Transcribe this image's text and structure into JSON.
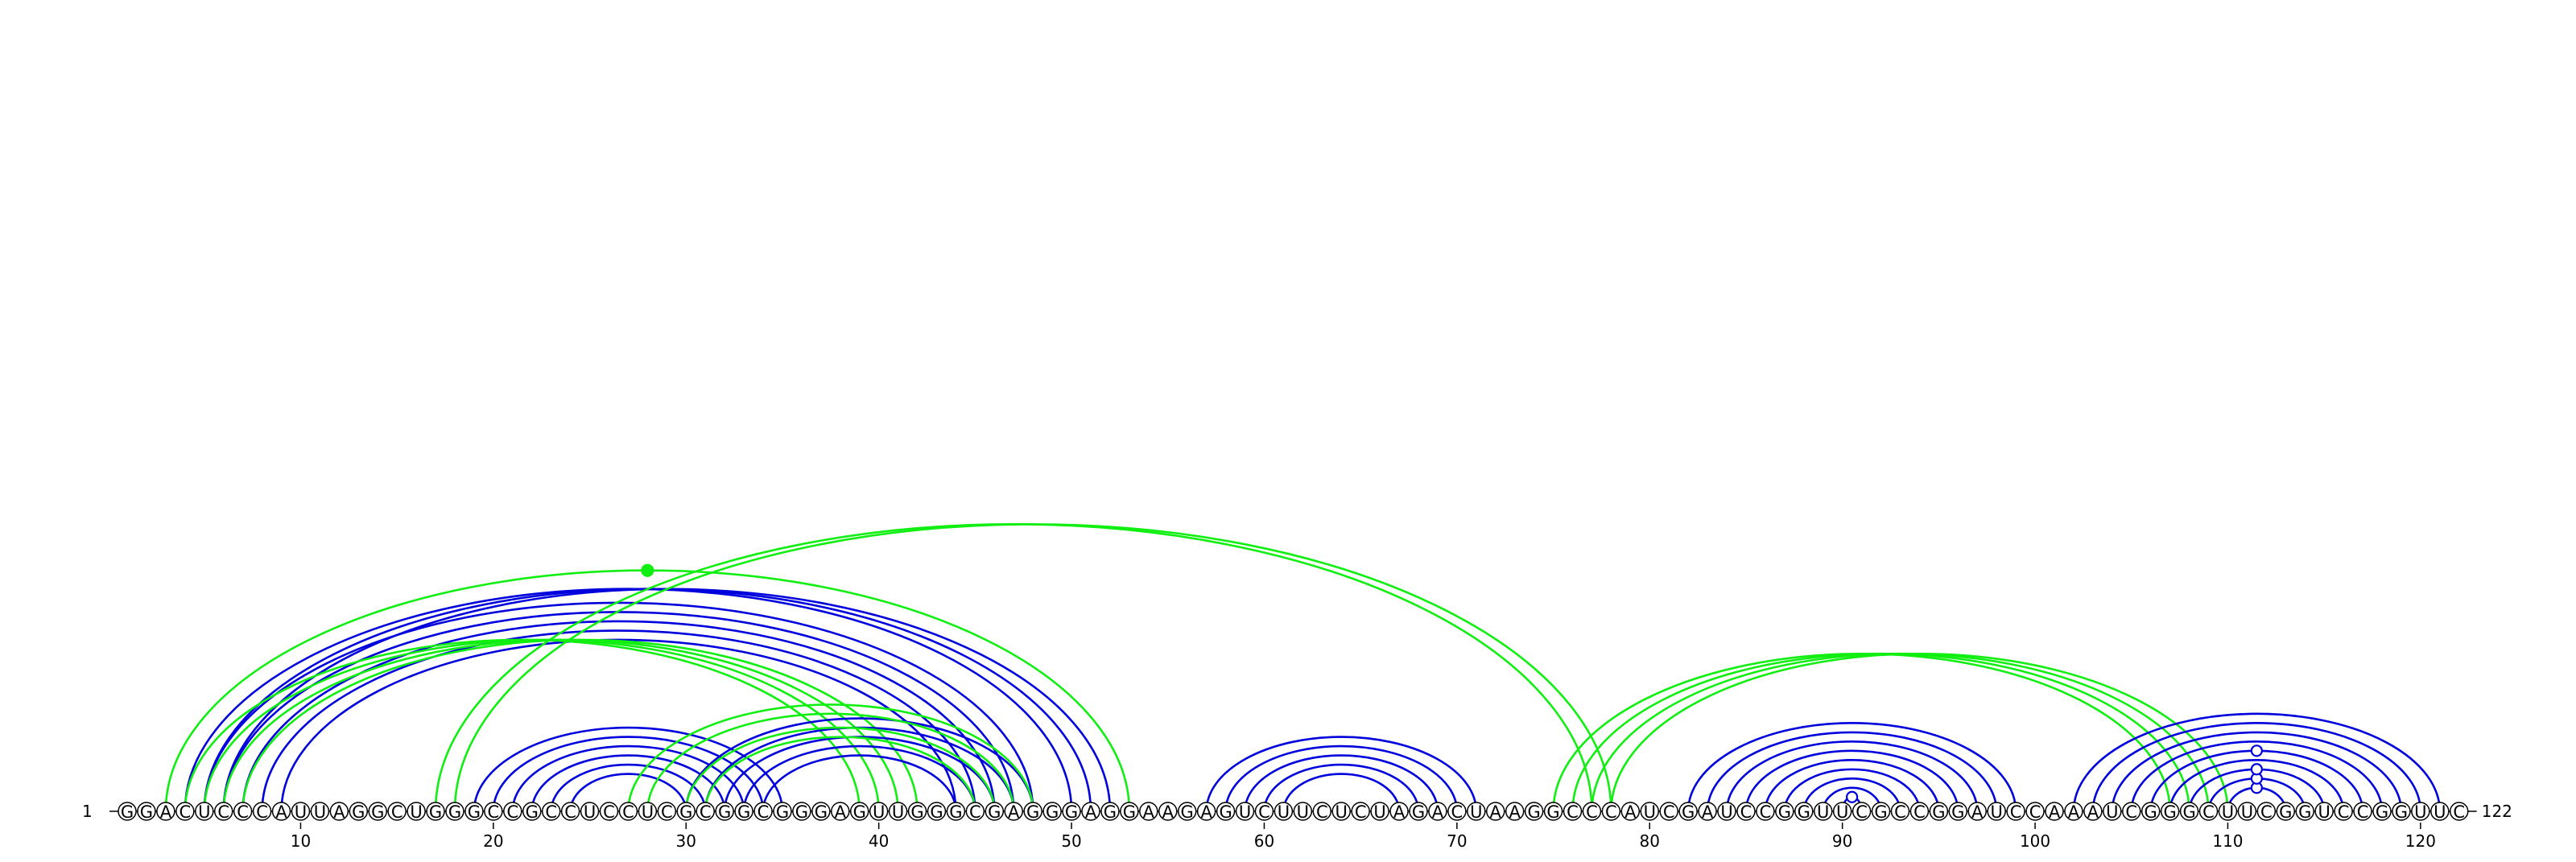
{
  "diagram": {
    "type": "rna-arc-diagram",
    "sequence": "GGACUCCCAUUAGGCUGGGCCGCCUCCUCGCGGCGGGAGUUGGGCGAGGGAGGAAGAGUCUUCUCUAGACUAAGGCCCAUCGAUCCGGUUCGCCGGAUCCAAAUCGGGCUUCGGUCCGGUUC",
    "length": 122,
    "start_label": "1",
    "end_label": "122",
    "tick_labels": [
      "10",
      "20",
      "30",
      "40",
      "50",
      "60",
      "70",
      "80",
      "90",
      "100",
      "110",
      "120"
    ],
    "colors": {
      "blue": "#0000dd",
      "green": "#11ee11",
      "backbone": "#000000"
    },
    "arcs": [
      {
        "i": 5,
        "j": 48,
        "color": "blue"
      },
      {
        "i": 6,
        "j": 47,
        "color": "blue"
      },
      {
        "i": 7,
        "j": 46,
        "color": "blue"
      },
      {
        "i": 8,
        "j": 45,
        "color": "blue"
      },
      {
        "i": 9,
        "j": 44,
        "color": "blue"
      },
      {
        "i": 4,
        "j": 50,
        "color": "blue"
      },
      {
        "i": 5,
        "j": 51,
        "color": "blue"
      },
      {
        "i": 6,
        "j": 52,
        "color": "blue"
      },
      {
        "i": 3,
        "j": 53,
        "color": "green"
      },
      {
        "i": 4,
        "j": 39,
        "color": "green"
      },
      {
        "i": 5,
        "j": 40,
        "color": "green"
      },
      {
        "i": 6,
        "j": 41,
        "color": "green"
      },
      {
        "i": 7,
        "j": 42,
        "color": "green"
      },
      {
        "i": 19,
        "j": 35,
        "color": "blue"
      },
      {
        "i": 20,
        "j": 34,
        "color": "blue"
      },
      {
        "i": 21,
        "j": 33,
        "color": "blue"
      },
      {
        "i": 22,
        "j": 32,
        "color": "blue"
      },
      {
        "i": 23,
        "j": 31,
        "color": "blue"
      },
      {
        "i": 24,
        "j": 30,
        "color": "blue"
      },
      {
        "i": 30,
        "j": 48,
        "color": "blue"
      },
      {
        "i": 31,
        "j": 47,
        "color": "blue"
      },
      {
        "i": 32,
        "j": 46,
        "color": "blue"
      },
      {
        "i": 33,
        "j": 45,
        "color": "blue"
      },
      {
        "i": 34,
        "j": 44,
        "color": "blue"
      },
      {
        "i": 27,
        "j": 48,
        "color": "green"
      },
      {
        "i": 28,
        "j": 47,
        "color": "green"
      },
      {
        "i": 30,
        "j": 46,
        "color": "green"
      },
      {
        "i": 31,
        "j": 45,
        "color": "green"
      },
      {
        "i": 17,
        "j": 77,
        "color": "green"
      },
      {
        "i": 18,
        "j": 78,
        "color": "green"
      },
      {
        "i": 57,
        "j": 71,
        "color": "blue"
      },
      {
        "i": 58,
        "j": 70,
        "color": "blue"
      },
      {
        "i": 59,
        "j": 69,
        "color": "blue"
      },
      {
        "i": 60,
        "j": 68,
        "color": "blue"
      },
      {
        "i": 61,
        "j": 67,
        "color": "blue"
      },
      {
        "i": 75,
        "j": 107,
        "color": "green"
      },
      {
        "i": 76,
        "j": 108,
        "color": "green"
      },
      {
        "i": 77,
        "j": 109,
        "color": "green"
      },
      {
        "i": 78,
        "j": 110,
        "color": "green"
      },
      {
        "i": 82,
        "j": 99,
        "color": "blue"
      },
      {
        "i": 83,
        "j": 98,
        "color": "blue"
      },
      {
        "i": 84,
        "j": 97,
        "color": "blue"
      },
      {
        "i": 85,
        "j": 96,
        "color": "blue"
      },
      {
        "i": 86,
        "j": 95,
        "color": "blue"
      },
      {
        "i": 87,
        "j": 94,
        "color": "blue"
      },
      {
        "i": 88,
        "j": 93,
        "color": "blue"
      },
      {
        "i": 89,
        "j": 92,
        "color": "blue"
      },
      {
        "i": 90,
        "j": 91,
        "color": "blue"
      },
      {
        "i": 102,
        "j": 121,
        "color": "blue"
      },
      {
        "i": 103,
        "j": 120,
        "color": "blue"
      },
      {
        "i": 104,
        "j": 119,
        "color": "blue"
      },
      {
        "i": 105,
        "j": 118,
        "color": "blue"
      },
      {
        "i": 106,
        "j": 117,
        "color": "blue"
      },
      {
        "i": 107,
        "j": 116,
        "color": "blue"
      },
      {
        "i": 108,
        "j": 115,
        "color": "blue"
      },
      {
        "i": 109,
        "j": 114,
        "color": "blue"
      },
      {
        "i": 110,
        "j": 113,
        "color": "blue"
      }
    ],
    "pseudoknot_markers": [
      {
        "at": 28,
        "arc_i": 3,
        "arc_j": 53,
        "color": "green",
        "filled": true
      },
      {
        "at": 90.5,
        "arc_i": 90,
        "arc_j": 91,
        "color": "blue",
        "filled": false
      },
      {
        "at": 111.5,
        "arc_i": 110,
        "arc_j": 113,
        "color": "blue",
        "filled": false
      },
      {
        "at": 111.5,
        "arc_i": 109,
        "arc_j": 114,
        "color": "blue",
        "filled": false
      },
      {
        "at": 111.5,
        "arc_i": 108,
        "arc_j": 115,
        "color": "blue",
        "filled": false
      },
      {
        "at": 111.5,
        "arc_i": 106,
        "arc_j": 117,
        "color": "blue",
        "filled": false
      }
    ]
  }
}
